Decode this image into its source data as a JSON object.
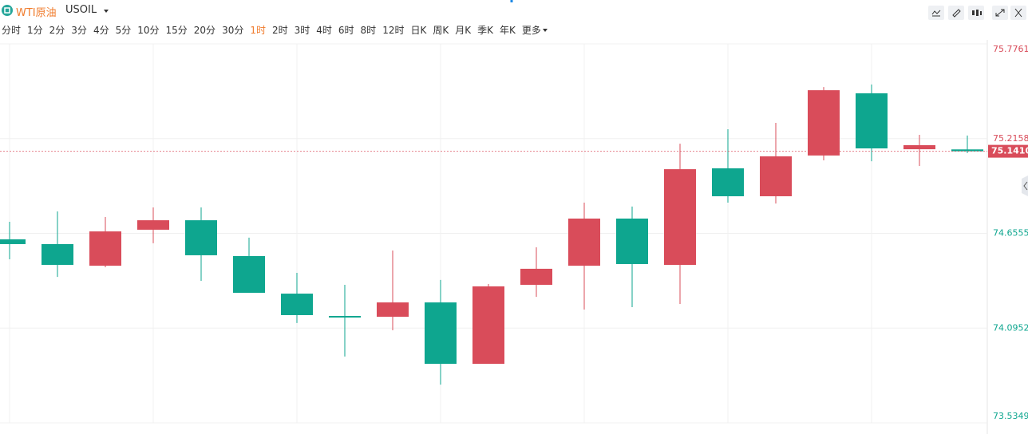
{
  "header": {
    "instrument": "WTI原油",
    "symbol": "USOIL",
    "timeframes": [
      "分时",
      "1分",
      "2分",
      "3分",
      "4分",
      "5分",
      "10分",
      "15分",
      "20分",
      "30分",
      "1时",
      "2时",
      "3时",
      "4时",
      "6时",
      "8时",
      "12时",
      "日K",
      "周K",
      "月K",
      "季K",
      "年K",
      "更多"
    ],
    "active_timeframe": 10
  },
  "chart_data": {
    "type": "candlestick",
    "categories": [
      null,
      null,
      null,
      null,
      null,
      null,
      null,
      null,
      null,
      null,
      null,
      null,
      null,
      null,
      null,
      null,
      null,
      null,
      null,
      null,
      null
    ],
    "open": [
      74.62,
      74.592,
      74.464,
      74.677,
      74.733,
      74.521,
      74.299,
      74.167,
      74.162,
      74.247,
      73.884,
      74.351,
      74.464,
      74.743,
      74.469,
      75.04,
      74.875,
      75.116,
      75.484,
      75.153,
      75.152
    ],
    "high": [
      74.724,
      74.785,
      74.752,
      74.809,
      74.809,
      74.63,
      74.422,
      74.351,
      74.554,
      74.38,
      74.356,
      74.573,
      74.837,
      74.814,
      75.186,
      75.271,
      75.309,
      75.521,
      75.536,
      75.238,
      75.234
    ],
    "low": [
      74.502,
      74.398,
      74.455,
      74.597,
      74.375,
      74.304,
      74.125,
      73.927,
      74.082,
      73.761,
      73.884,
      74.28,
      74.205,
      74.219,
      74.238,
      74.837,
      74.832,
      75.087,
      75.082,
      75.054,
      75.13
    ],
    "close": [
      74.592,
      74.469,
      74.667,
      74.733,
      74.526,
      74.304,
      74.172,
      74.158,
      74.247,
      73.884,
      74.342,
      74.446,
      74.743,
      74.474,
      75.035,
      74.875,
      75.111,
      75.502,
      75.158,
      75.177,
      75.141
    ],
    "up_color": "#d94c5a",
    "down_color": "#0ea68f",
    "ylim": [
      73.5349,
      75.7761
    ],
    "yticks": [
      73.5349,
      74.0952,
      74.6555,
      75.2158,
      75.7761
    ],
    "last_price": {
      "value": 75.141,
      "label": "75.1410"
    },
    "grid": true
  }
}
